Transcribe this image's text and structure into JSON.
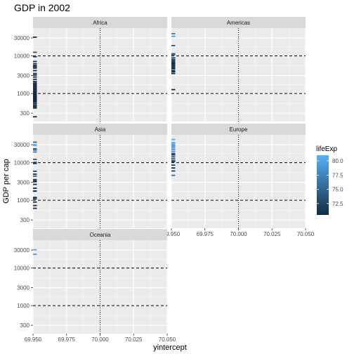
{
  "chart_data": {
    "type": "scatter",
    "title": "GDP in 2002",
    "xlabel": "yintercept",
    "ylabel": "GDP per cap",
    "x_scale": "linear",
    "xlim": [
      69.95,
      70.05
    ],
    "x_ticks": [
      69.95,
      69.975,
      70.0,
      70.025,
      70.05
    ],
    "x_tick_labels": [
      "69.950",
      "69.975",
      "70.000",
      "70.025",
      "70.050"
    ],
    "y_scale": "log10",
    "ylim": [
      180,
      55000
    ],
    "y_ticks": [
      300,
      1000,
      3000,
      10000,
      30000
    ],
    "y_tick_labels": [
      "300",
      "1000",
      "3000",
      "10000",
      "30000"
    ],
    "reference_lines": {
      "horizontal_dashed": [
        1000,
        10000
      ],
      "vertical_dotted": [
        70.0
      ]
    },
    "mark_x": 69.95,
    "grid": true,
    "legend": {
      "title": "lifeExp",
      "position": "right",
      "type": "colorbar",
      "range": [
        70.5,
        81.0
      ],
      "ticks": [
        72.5,
        75.0,
        77.5,
        80.0
      ],
      "tick_labels": [
        "72.5",
        "75.0",
        "77.5",
        "80.0"
      ],
      "color_low": "#132B43",
      "color_high": "#56B1F7"
    },
    "highlight_color": "#6b1010",
    "panels": [
      {
        "name": "Africa",
        "points": [
          {
            "gdp": 241,
            "lifeExp": 45
          },
          {
            "gdp": 411,
            "lifeExp": 46
          },
          {
            "gdp": 446,
            "lifeExp": 45
          },
          {
            "gdp": 483,
            "lifeExp": 47
          },
          {
            "gdp": 531,
            "lifeExp": 48
          },
          {
            "gdp": 580,
            "lifeExp": 45
          },
          {
            "gdp": 601,
            "lifeExp": 47
          },
          {
            "gdp": 635,
            "lifeExp": 50
          },
          {
            "gdp": 665,
            "lifeExp": 52
          },
          {
            "gdp": 699,
            "lifeExp": 50
          },
          {
            "gdp": 735,
            "lifeExp": 48
          },
          {
            "gdp": 760,
            "lifeExp": 53
          },
          {
            "gdp": 791,
            "lifeExp": 49
          },
          {
            "gdp": 820,
            "lifeExp": 52
          },
          {
            "gdp": 860,
            "lifeExp": 55
          },
          {
            "gdp": 897,
            "lifeExp": 50
          },
          {
            "gdp": 950,
            "lifeExp": 53
          },
          {
            "gdp": 1003,
            "lifeExp": 51
          },
          {
            "gdp": 1057,
            "lifeExp": 55
          },
          {
            "gdp": 1111,
            "lifeExp": 54
          },
          {
            "gdp": 1170,
            "lifeExp": 56
          },
          {
            "gdp": 1270,
            "lifeExp": 57
          },
          {
            "gdp": 1332,
            "lifeExp": 54
          },
          {
            "gdp": 1430,
            "lifeExp": 58
          },
          {
            "gdp": 1544,
            "lifeExp": 59
          },
          {
            "gdp": 1648,
            "lifeExp": 56
          },
          {
            "gdp": 1764,
            "lifeExp": 60
          },
          {
            "gdp": 1908,
            "lifeExp": 58
          },
          {
            "gdp": 2092,
            "lifeExp": 61
          },
          {
            "gdp": 2390,
            "lifeExp": 62
          },
          {
            "gdp": 2748,
            "lifeExp": 63
          },
          {
            "gdp": 3099,
            "lifeExp": 64
          },
          {
            "gdp": 3413,
            "lifeExp": 65
          },
          {
            "gdp": 4072,
            "lifeExp": 66
          },
          {
            "gdp": 4754,
            "lifeExp": 67
          },
          {
            "gdp": 5187,
            "lifeExp": 68
          },
          {
            "gdp": 5581,
            "lifeExp": 69
          },
          {
            "gdp": 6205,
            "lifeExp": 70
          },
          {
            "gdp": 7127,
            "lifeExp": 71
          },
          {
            "gdp": 9534,
            "lifeExp": 72
          },
          {
            "gdp": 12521,
            "lifeExp": 74
          },
          {
            "gdp": 31540,
            "lifeExp": 66
          }
        ]
      },
      {
        "name": "Americas",
        "points": [
          {
            "gdp": 1270,
            "lifeExp": 58
          },
          {
            "gdp": 3413,
            "lifeExp": 64
          },
          {
            "gdp": 3783,
            "lifeExp": 65
          },
          {
            "gdp": 4072,
            "lifeExp": 67
          },
          {
            "gdp": 4563,
            "lifeExp": 68
          },
          {
            "gdp": 4754,
            "lifeExp": 69
          },
          {
            "gdp": 5187,
            "lifeExp": 70
          },
          {
            "gdp": 5581,
            "lifeExp": 71
          },
          {
            "gdp": 5773,
            "lifeExp": 72
          },
          {
            "gdp": 6205,
            "lifeExp": 70
          },
          {
            "gdp": 6640,
            "lifeExp": 71
          },
          {
            "gdp": 7092,
            "lifeExp": 72
          },
          {
            "gdp": 7408,
            "lifeExp": 73
          },
          {
            "gdp": 7885,
            "lifeExp": 72
          },
          {
            "gdp": 8131,
            "lifeExp": 73
          },
          {
            "gdp": 8948,
            "lifeExp": 74
          },
          {
            "gdp": 10742,
            "lifeExp": 74
          },
          {
            "gdp": 11460,
            "lifeExp": 75
          },
          {
            "gdp": 18855,
            "lifeExp": 74
          },
          {
            "gdp": 33329,
            "lifeExp": 79
          },
          {
            "gdp": 39097,
            "lifeExp": 77
          }
        ]
      },
      {
        "name": "Asia",
        "points": [
          {
            "gdp": 611,
            "lifeExp": 62
          },
          {
            "gdp": 726,
            "lifeExp": 43
          },
          {
            "gdp": 896,
            "lifeExp": 56
          },
          {
            "gdp": 1088,
            "lifeExp": 62
          },
          {
            "gdp": 1192,
            "lifeExp": 60
          },
          {
            "gdp": 1747,
            "lifeExp": 70
          },
          {
            "gdp": 1764,
            "lifeExp": 64
          },
          {
            "gdp": 2092,
            "lifeExp": 70
          },
          {
            "gdp": 2650,
            "lifeExp": 71
          },
          {
            "gdp": 3119,
            "lifeExp": 69
          },
          {
            "gdp": 3246,
            "lifeExp": 68
          },
          {
            "gdp": 3548,
            "lifeExp": 63
          },
          {
            "gdp": 4391,
            "lifeExp": 74
          },
          {
            "gdp": 4959,
            "lifeExp": 71
          },
          {
            "gdp": 5913,
            "lifeExp": 72
          },
          {
            "gdp": 9555,
            "lifeExp": 69
          },
          {
            "gdp": 10174,
            "lifeExp": 72
          },
          {
            "gdp": 12226,
            "lifeExp": 74
          },
          {
            "gdp": 19234,
            "lifeExp": 77
          },
          {
            "gdp": 21655,
            "lifeExp": 76
          },
          {
            "gdp": 23404,
            "lifeExp": 74
          },
          {
            "gdp": 28604,
            "lifeExp": 82
          },
          {
            "gdp": 30209,
            "lifeExp": 81
          },
          {
            "gdp": 35110,
            "lifeExp": 75
          }
        ]
      },
      {
        "name": "Europe",
        "points": [
          {
            "gdp": 4604,
            "lifeExp": 75.7
          },
          {
            "gdp": 6018,
            "lifeExp": 72.6
          },
          {
            "gdp": 7236,
            "lifeExp": 70.8
          },
          {
            "gdp": 8605,
            "lifeExp": 72.2
          },
          {
            "gdp": 10681,
            "lifeExp": 71.3
          },
          {
            "gdp": 11628,
            "lifeExp": 74.3
          },
          {
            "gdp": 13062,
            "lifeExp": 73.3
          },
          {
            "gdp": 14745,
            "lifeExp": 74.6
          },
          {
            "gdp": 16369,
            "lifeExp": 72.1
          },
          {
            "gdp": 17596,
            "lifeExp": 73.2
          },
          {
            "gdp": 19970,
            "lifeExp": 78.0
          },
          {
            "gdp": 22473,
            "lifeExp": 78.6
          },
          {
            "gdp": 24841,
            "lifeExp": 79.4
          },
          {
            "gdp": 27042,
            "lifeExp": 79.8
          },
          {
            "gdp": 29341,
            "lifeExp": 79.3
          },
          {
            "gdp": 31163,
            "lifeExp": 80.5
          },
          {
            "gdp": 34077,
            "lifeExp": 80.2
          },
          {
            "gdp": 41469,
            "lifeExp": 80.1
          }
        ]
      },
      {
        "name": "Oceania",
        "points": [
          {
            "gdp": 23190,
            "lifeExp": 79.1
          },
          {
            "gdp": 30688,
            "lifeExp": 80.4
          }
        ]
      }
    ]
  }
}
